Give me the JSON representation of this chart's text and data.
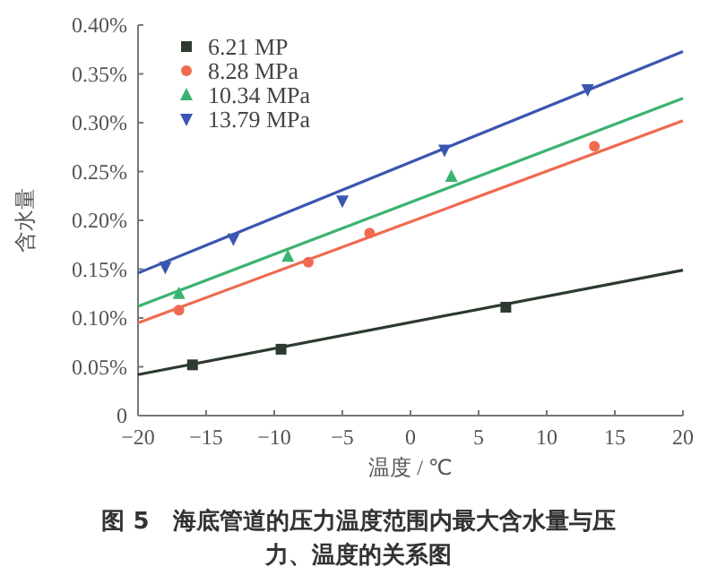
{
  "chart_data": {
    "type": "scatter",
    "title": "图 5　海底管道的压力温度范围内最大含水量与压力、温度的关系图",
    "xlabel": "温度 / ℃",
    "ylabel": "含水量",
    "xlim": [
      -20,
      20
    ],
    "xticks": [
      {
        "value": -20,
        "label": "−20"
      },
      {
        "value": -15,
        "label": "−15"
      },
      {
        "value": -10,
        "label": "−10"
      },
      {
        "value": -5,
        "label": "−5"
      },
      0,
      5,
      10,
      15,
      20
    ],
    "ylim": [
      0,
      0.4
    ],
    "yticks": [
      0,
      {
        "value": 0.05,
        "label": "0.05%"
      },
      {
        "value": 0.1,
        "label": "0.10%"
      },
      {
        "value": 0.15,
        "label": "0.15%"
      },
      {
        "value": 0.2,
        "label": "0.20%"
      },
      {
        "value": 0.25,
        "label": "0.25%"
      },
      {
        "value": 0.3,
        "label": "0.30%"
      },
      {
        "value": 0.35,
        "label": "0.35%"
      },
      {
        "value": 0.4,
        "label": "0.40%"
      }
    ],
    "grid": false,
    "legend": "top left",
    "series": [
      {
        "name": "6.21 MP",
        "color": "#2d3a2e",
        "marker": "square",
        "x": [
          -16,
          -9.5,
          7
        ],
        "values": [
          0.052,
          0.068,
          0.111
        ]
      },
      {
        "name": "8.28 MPa",
        "color": "#f06a50",
        "marker": "circle",
        "x": [
          -17,
          -7.5,
          -3,
          13.5
        ],
        "values": [
          0.108,
          0.157,
          0.187,
          0.276
        ]
      },
      {
        "name": "10.34 MPa",
        "color": "#3cb371",
        "marker": "triangle",
        "x": [
          -17,
          -9,
          3
        ],
        "values": [
          0.125,
          0.163,
          0.245
        ]
      },
      {
        "name": "13.79 MPa",
        "color": "#3a56b0",
        "marker": "triangle-down",
        "x": [
          -18,
          -13,
          -5,
          2.5,
          13
        ],
        "values": [
          0.152,
          0.181,
          0.22,
          0.272,
          0.334
        ]
      },
      {
        "type": "line",
        "color": "#2d3a2e",
        "x": [
          -20,
          20
        ],
        "values": [
          0.042,
          0.149
        ]
      },
      {
        "type": "line",
        "color": "#f06a50",
        "x": [
          -20,
          20
        ],
        "values": [
          0.095,
          0.302
        ]
      },
      {
        "type": "line",
        "color": "#3cb371",
        "x": [
          -20,
          20
        ],
        "values": [
          0.112,
          0.325
        ]
      },
      {
        "type": "line",
        "color": "#3a56b0",
        "x": [
          -20,
          20
        ],
        "values": [
          0.146,
          0.373
        ]
      }
    ]
  }
}
